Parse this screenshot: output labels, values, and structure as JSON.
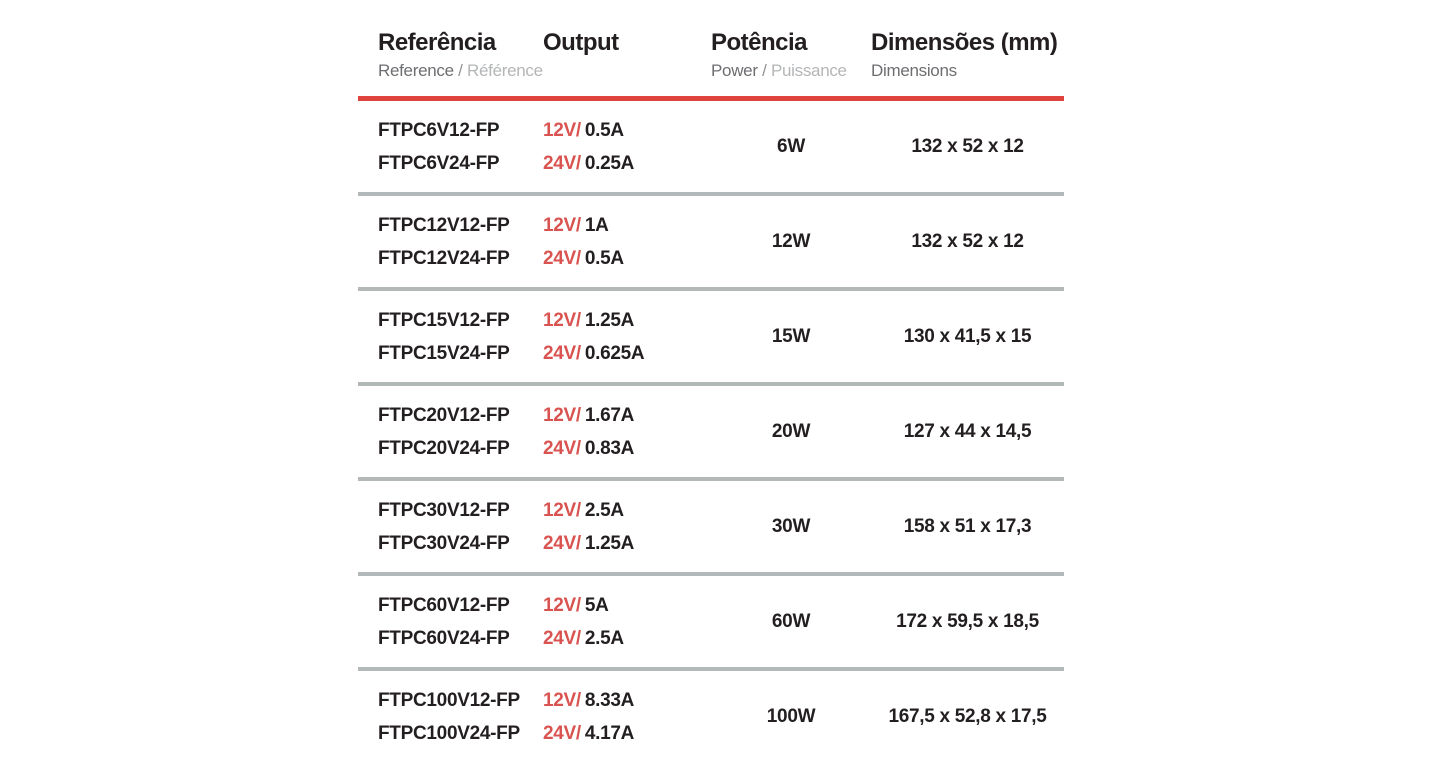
{
  "colors": {
    "accent_red": "#d95450",
    "rule_red": "#e0423d",
    "separator_gray": "#b3b8b9",
    "text_black": "#231f20",
    "text_dark_gray": "#6d6e71",
    "text_mid_gray": "#909295",
    "text_light_gray": "#b3b5b7"
  },
  "header": {
    "reference": {
      "title": "Referência",
      "sub_en": "Reference",
      "slash": " / ",
      "sub_fr": "Référence"
    },
    "output": {
      "title": "Output"
    },
    "power": {
      "title": "Potência",
      "sub_en": "Power",
      "slash": " / ",
      "sub_fr": "Puissance"
    },
    "dimensions": {
      "title": "Dimensões (mm)",
      "sub_en": "Dimensions"
    }
  },
  "chart_data": {
    "type": "table",
    "title": "Power supply specifications",
    "columns": [
      "Referência",
      "Output",
      "Potência",
      "Dimensões (mm)"
    ]
  },
  "rows": [
    {
      "references": [
        "FTPC6V12-FP",
        "FTPC6V24-FP"
      ],
      "outputs": [
        {
          "voltage": "12V/",
          "current": "0.5A"
        },
        {
          "voltage": "24V/",
          "current": "0.25A"
        }
      ],
      "power": "6W",
      "dimensions": "132 x 52 x 12"
    },
    {
      "references": [
        "FTPC12V12-FP",
        "FTPC12V24-FP"
      ],
      "outputs": [
        {
          "voltage": "12V/",
          "current": "1A"
        },
        {
          "voltage": "24V/",
          "current": "0.5A"
        }
      ],
      "power": "12W",
      "dimensions": "132 x 52 x 12"
    },
    {
      "references": [
        "FTPC15V12-FP",
        "FTPC15V24-FP"
      ],
      "outputs": [
        {
          "voltage": "12V/",
          "current": "1.25A"
        },
        {
          "voltage": "24V/",
          "current": "0.625A"
        }
      ],
      "power": "15W",
      "dimensions": "130 x 41,5 x 15"
    },
    {
      "references": [
        "FTPC20V12-FP",
        "FTPC20V24-FP"
      ],
      "outputs": [
        {
          "voltage": "12V/",
          "current": "1.67A"
        },
        {
          "voltage": "24V/",
          "current": "0.83A"
        }
      ],
      "power": "20W",
      "dimensions": "127 x 44 x 14,5"
    },
    {
      "references": [
        "FTPC30V12-FP",
        "FTPC30V24-FP"
      ],
      "outputs": [
        {
          "voltage": "12V/",
          "current": "2.5A"
        },
        {
          "voltage": "24V/",
          "current": "1.25A"
        }
      ],
      "power": "30W",
      "dimensions": "158 x 51 x 17,3"
    },
    {
      "references": [
        "FTPC60V12-FP",
        "FTPC60V24-FP"
      ],
      "outputs": [
        {
          "voltage": "12V/",
          "current": "5A"
        },
        {
          "voltage": "24V/",
          "current": "2.5A"
        }
      ],
      "power": "60W",
      "dimensions": "172 x 59,5 x 18,5"
    },
    {
      "references": [
        "FTPC100V12-FP",
        "FTPC100V24-FP"
      ],
      "outputs": [
        {
          "voltage": "12V/",
          "current": "8.33A"
        },
        {
          "voltage": "24V/",
          "current": "4.17A"
        }
      ],
      "power": "100W",
      "dimensions": "167,5 x 52,8 x 17,5"
    }
  ]
}
